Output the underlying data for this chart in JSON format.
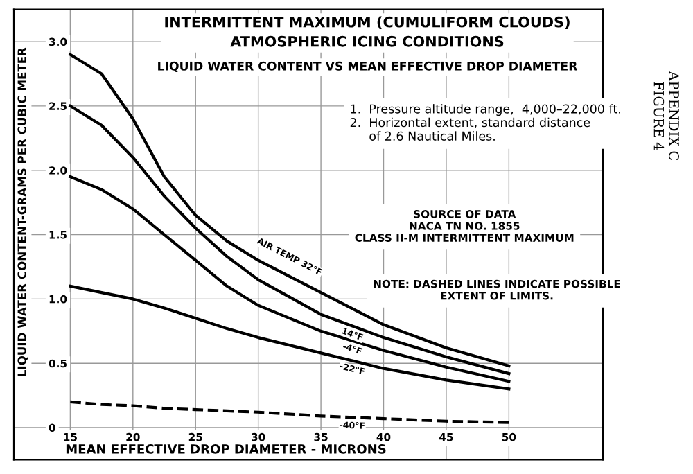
{
  "chart_data": {
    "type": "line",
    "title": "INTERMITTENT MAXIMUM (CUMULIFORM CLOUDS)\nATMOSPHERIC ICING CONDITIONS",
    "subtitle": "LIQUID WATER CONTENT VS MEAN EFFECTIVE DROP DIAMETER",
    "xlabel": "MEAN EFFECTIVE DROP DIAMETER - MICRONS",
    "ylabel": "LIQUID WATER CONTENT-GRAMS PER CUBIC METER",
    "x": [
      15,
      17.5,
      20,
      22.5,
      25,
      27.5,
      30,
      35,
      40,
      45,
      50
    ],
    "series": [
      {
        "name": "AIR TEMP 32°F",
        "color": "#000000",
        "values": [
          2.9,
          2.75,
          2.4,
          1.95,
          1.65,
          1.45,
          1.3,
          1.05,
          0.8,
          0.62,
          0.48
        ]
      },
      {
        "name": "14°F",
        "color": "#000000",
        "values": [
          2.5,
          2.35,
          2.1,
          1.8,
          1.55,
          1.33,
          1.15,
          0.88,
          0.7,
          0.55,
          0.42
        ]
      },
      {
        "name": "-4°F",
        "color": "#000000",
        "values": [
          1.95,
          1.85,
          1.7,
          1.5,
          1.3,
          1.1,
          0.95,
          0.75,
          0.6,
          0.47,
          0.36
        ]
      },
      {
        "name": "-22°F",
        "color": "#000000",
        "values": [
          1.1,
          1.05,
          1.0,
          0.93,
          0.85,
          0.77,
          0.7,
          0.58,
          0.46,
          0.37,
          0.3
        ]
      },
      {
        "name": "-40°F",
        "color": "#000000",
        "line_style": "dashed",
        "values": [
          0.2,
          0.18,
          0.17,
          0.15,
          0.14,
          0.13,
          0.12,
          0.09,
          0.07,
          0.05,
          0.04
        ]
      }
    ],
    "xlim": [
      10.5,
      57.5
    ],
    "ylim": [
      -0.25,
      3.25
    ],
    "xticks": [
      15,
      20,
      25,
      30,
      35,
      40,
      45,
      50
    ],
    "yticks": [
      {
        "value": 0,
        "label": "0"
      },
      {
        "value": 0.5,
        "label": "0.5"
      },
      {
        "value": 1.0,
        "label": "1.0"
      },
      {
        "value": 1.5,
        "label": "1.5"
      },
      {
        "value": 2.0,
        "label": "2.0"
      },
      {
        "value": 2.5,
        "label": "2.5"
      },
      {
        "value": 3.0,
        "label": "3.0"
      }
    ],
    "grid": true,
    "line_style": "solid",
    "marker": "none",
    "annotations": [
      "1.  Pressure altitude range,  4,000–22,000 ft.\n2.  Horizontal extent, standard distance\n     of 2.6 Nautical Miles.",
      "SOURCE OF DATA\nNACA TN NO. 1855\nCLASS II-M INTERMITTENT MAXIMUM",
      "NOTE: DASHED LINES INDICATE POSSIBLE\nEXTENT OF LIMITS.",
      "APPENDIX C\nFIGURE 4"
    ]
  }
}
